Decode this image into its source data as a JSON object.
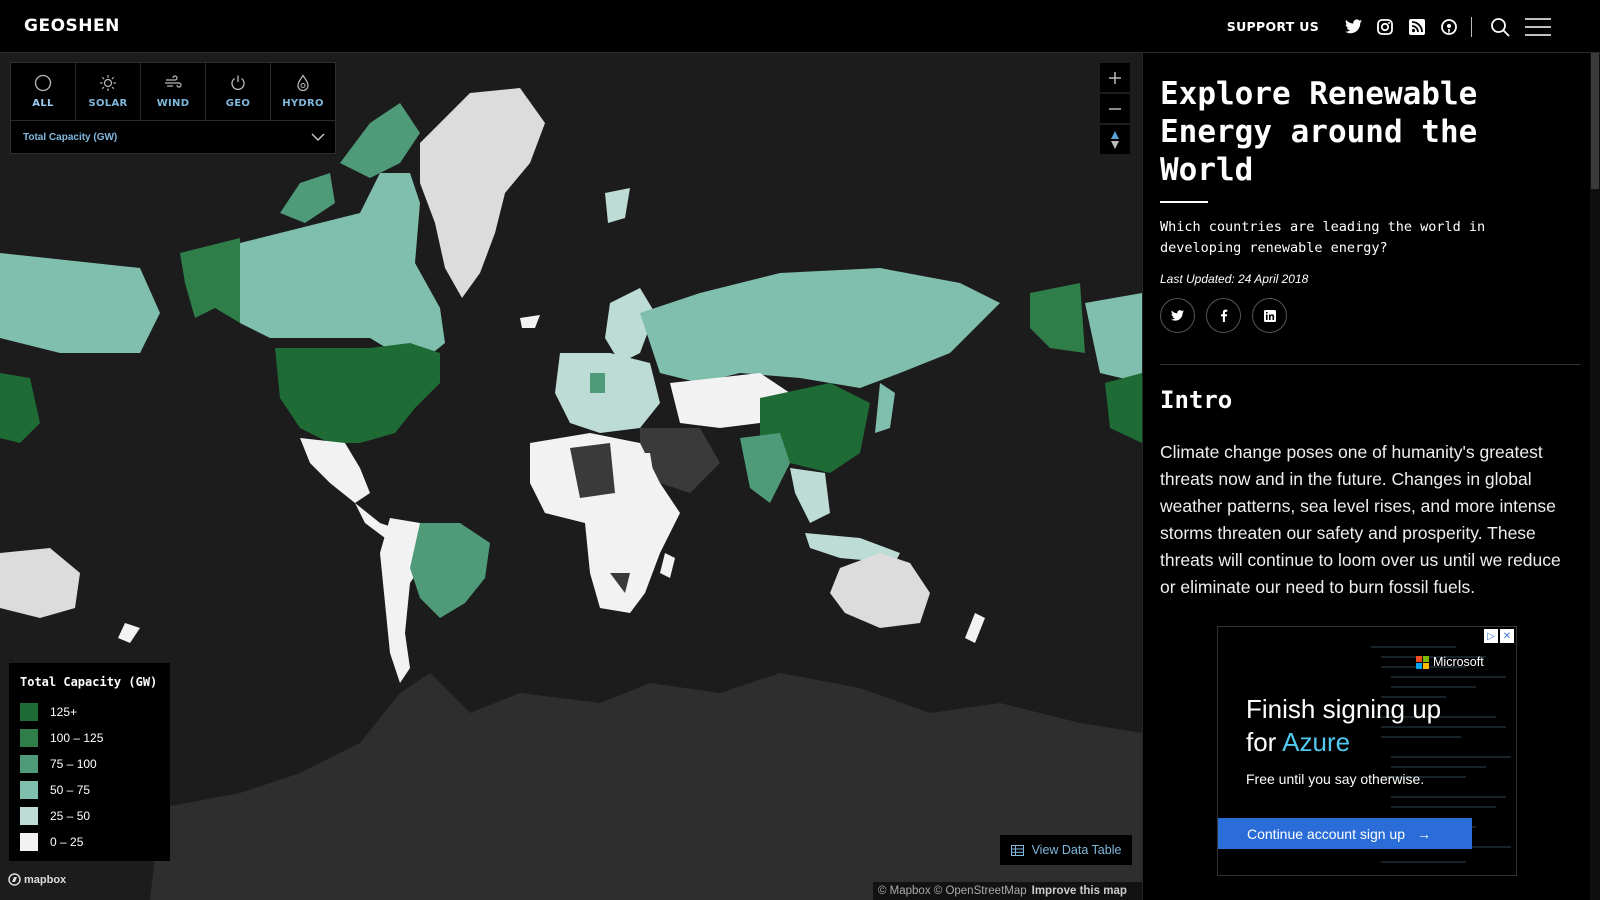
{
  "header": {
    "brand": "GEOSHEN",
    "support_label": "SUPPORT US",
    "icons": [
      "twitter-icon",
      "instagram-icon",
      "rss-icon",
      "podcast-icon",
      "search-icon",
      "menu-icon"
    ]
  },
  "map": {
    "power_tabs": [
      {
        "label": "ALL",
        "icon": "circle-icon",
        "active": true
      },
      {
        "label": "SOLAR",
        "icon": "sun-icon"
      },
      {
        "label": "WIND",
        "icon": "wind-icon"
      },
      {
        "label": "GEO",
        "icon": "power-icon"
      },
      {
        "label": "HYDRO",
        "icon": "drop-icon"
      }
    ],
    "metric_select": "Total Capacity (GW)",
    "legend": {
      "title": "Total Capacity (GW)",
      "items": [
        {
          "label": "125+",
          "color": "#1e6b35"
        },
        {
          "label": "100 – 125",
          "color": "#2f7d48"
        },
        {
          "label": "75 – 100",
          "color": "#4f9a78"
        },
        {
          "label": "50 – 75",
          "color": "#80bfae"
        },
        {
          "label": "25 – 50",
          "color": "#bcdcd5"
        },
        {
          "label": "0 – 25",
          "color": "#f2f2f2"
        }
      ]
    },
    "view_table_label": "View Data Table",
    "mapbox_label": "mapbox",
    "attribution": "© Mapbox © OpenStreetMap",
    "improve_label": "Improve this map"
  },
  "panel": {
    "title": "Explore Renewable Energy around the World",
    "subtitle": "Which countries are leading the world in developing renewable energy?",
    "last_updated": "Last Updated: 24 April 2018",
    "share_icons": [
      "twitter-icon",
      "facebook-icon",
      "linkedin-icon"
    ],
    "intro_heading": "Intro",
    "intro_body": "Climate change poses one of humanity's greatest threats now and in the future. Changes in global weather patterns, sea level rises, and more intense storms threaten our safety and prosperity. These threats will continue to loom over us until we reduce or eliminate our need to burn fossil fuels."
  },
  "ad": {
    "brand": "Microsoft",
    "headline_1": "Finish signing up",
    "headline_2": "for ",
    "headline_highlight": "Azure",
    "sub": "Free until you say otherwise.",
    "button": "Continue account sign up",
    "button_arrow": "→"
  }
}
